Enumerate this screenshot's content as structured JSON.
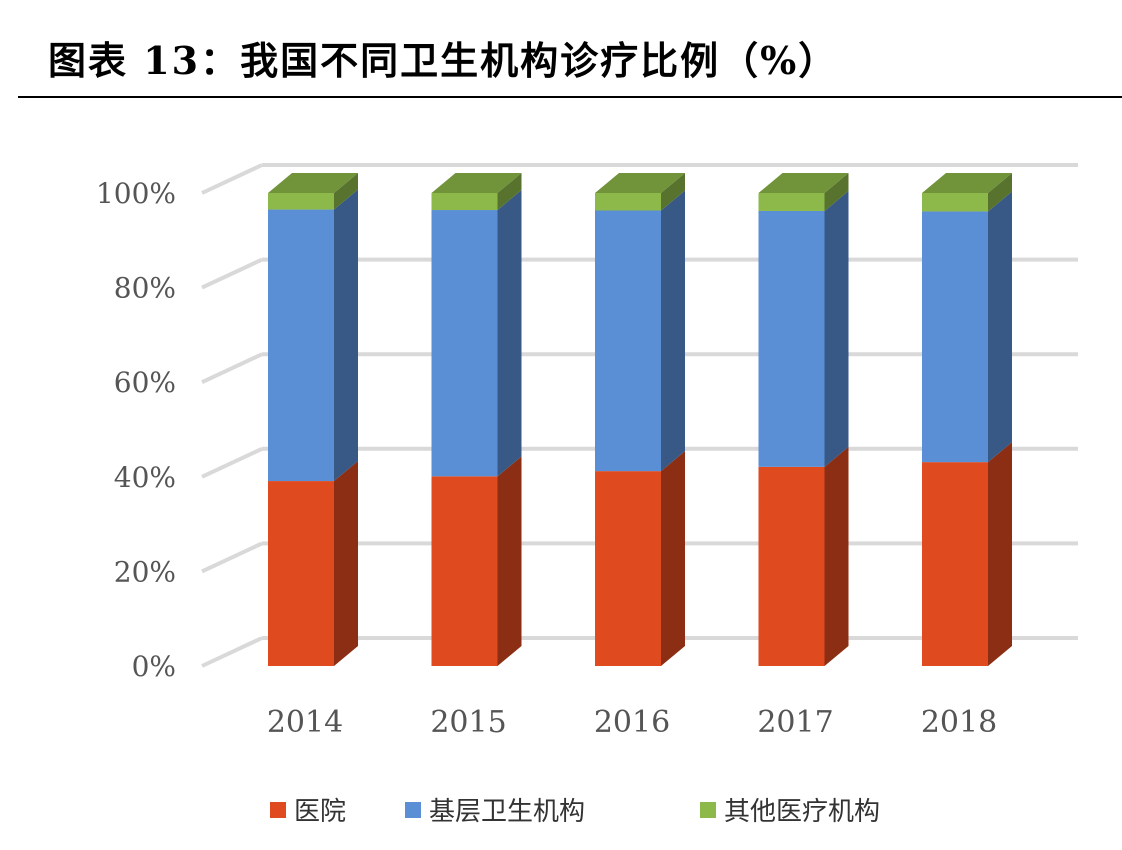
{
  "title": "图表 13：我国不同卫生机构诊疗比例（%）",
  "chart_data": {
    "type": "bar",
    "stacked": true,
    "three_d": true,
    "categories": [
      "2014",
      "2015",
      "2016",
      "2017",
      "2018"
    ],
    "series": [
      {
        "name": "医院",
        "color": "#E04A1F",
        "values": [
          39.1,
          40.1,
          41.2,
          42.1,
          43.1
        ]
      },
      {
        "name": "基层卫生机构",
        "color": "#5A8FD6",
        "values": [
          57.4,
          56.3,
          55.1,
          54.1,
          53.0
        ]
      },
      {
        "name": "其他医疗机构",
        "color": "#8DB94A",
        "values": [
          3.5,
          3.6,
          3.7,
          3.8,
          3.9
        ]
      }
    ],
    "y_ticks": [
      "0%",
      "20%",
      "40%",
      "60%",
      "80%",
      "100%"
    ],
    "ylim": [
      0,
      100
    ],
    "grid": true,
    "legend": "bottom"
  }
}
